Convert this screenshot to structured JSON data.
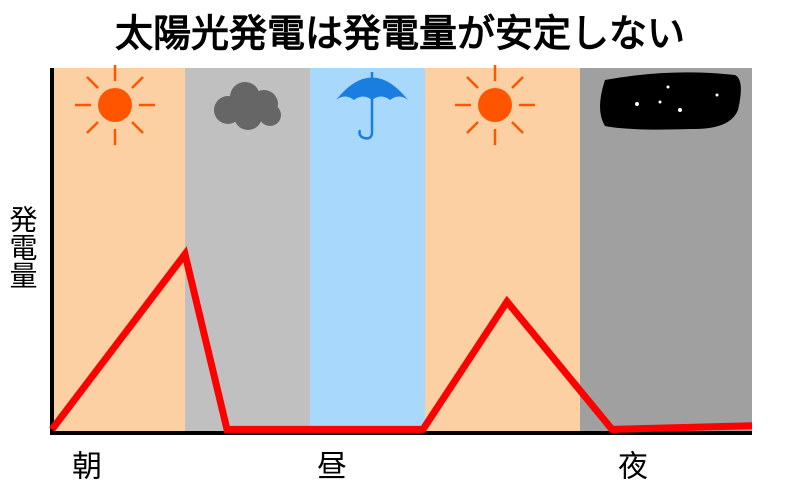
{
  "chart_data": {
    "type": "line",
    "title": "太陽光発電は発電量が安定しない",
    "y_label": "発電量",
    "x": [
      0,
      19,
      25,
      53,
      65,
      80,
      100
    ],
    "values": [
      1,
      49,
      1,
      1,
      36,
      1,
      2
    ],
    "color": "#ff0000",
    "xlim": [
      0,
      100
    ],
    "ylim": [
      0,
      100
    ],
    "xticks": [
      {
        "value": 5,
        "label": "朝"
      },
      {
        "value": 40,
        "label": "昼"
      },
      {
        "value": 83,
        "label": "夜"
      }
    ]
  }
}
